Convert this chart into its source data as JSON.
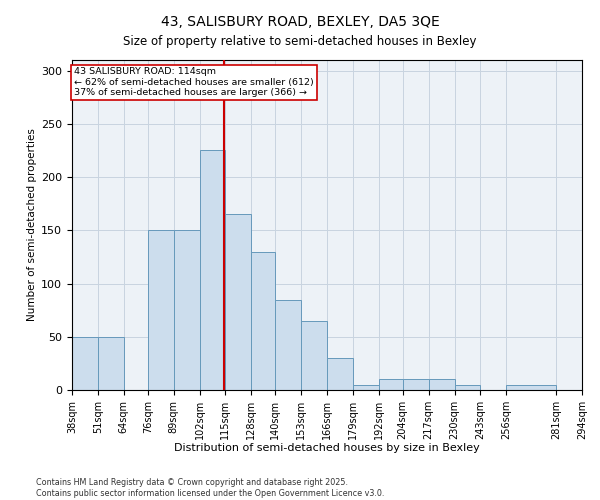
{
  "title": "43, SALISBURY ROAD, BEXLEY, DA5 3QE",
  "subtitle": "Size of property relative to semi-detached houses in Bexley",
  "xlabel": "Distribution of semi-detached houses by size in Bexley",
  "ylabel": "Number of semi-detached properties",
  "property_label": "43 SALISBURY ROAD: 114sqm",
  "smaller_pct": 62,
  "smaller_count": 612,
  "larger_pct": 37,
  "larger_count": 366,
  "vline_x": 114.5,
  "bar_color": "#ccdded",
  "bar_edge_color": "#6699bb",
  "vline_color": "#cc0000",
  "annotation_edge_color": "#cc0000",
  "grid_color": "#c8d4e0",
  "background_color": "#edf2f7",
  "bin_edges": [
    38,
    51,
    64,
    76,
    89,
    102,
    115,
    128,
    140,
    153,
    166,
    179,
    192,
    204,
    217,
    230,
    243,
    256,
    281,
    294
  ],
  "tick_labels": [
    "38sqm",
    "51sqm",
    "64sqm",
    "76sqm",
    "89sqm",
    "102sqm",
    "115sqm",
    "128sqm",
    "140sqm",
    "153sqm",
    "166sqm",
    "179sqm",
    "192sqm",
    "204sqm",
    "217sqm",
    "230sqm",
    "243sqm",
    "256sqm",
    "281sqm",
    "294sqm"
  ],
  "bar_heights": [
    50,
    50,
    0,
    150,
    150,
    225,
    165,
    130,
    85,
    65,
    30,
    5,
    10,
    10,
    10,
    5,
    0,
    5,
    0,
    0
  ],
  "ylim": [
    0,
    310
  ],
  "yticks": [
    0,
    50,
    100,
    150,
    200,
    250,
    300
  ],
  "footnote1": "Contains HM Land Registry data © Crown copyright and database right 2025.",
  "footnote2": "Contains public sector information licensed under the Open Government Licence v3.0."
}
